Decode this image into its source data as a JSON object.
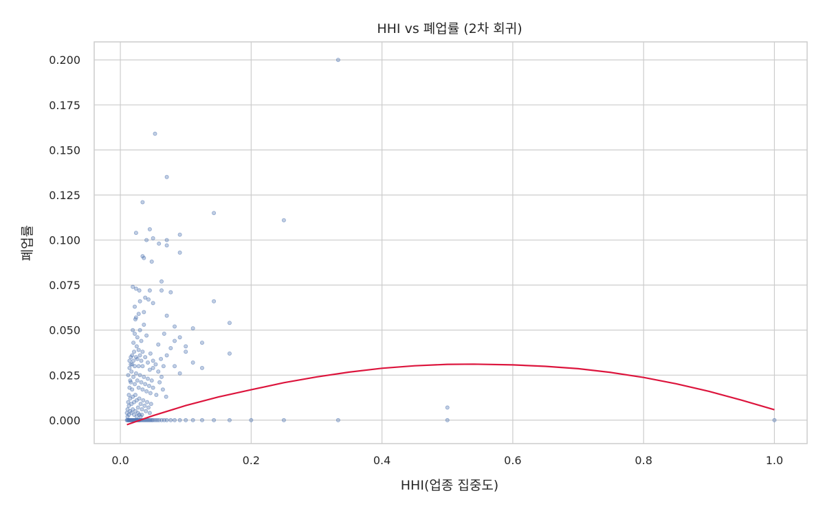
{
  "chart_data": {
    "type": "scatter",
    "title": "HHI vs 폐업률 (2차 회귀)",
    "xlabel": "HHI(업종 집중도)",
    "ylabel": "폐업률",
    "xlim": [
      -0.04,
      1.05
    ],
    "ylim": [
      -0.013,
      0.21
    ],
    "x_ticks": [
      0.0,
      0.2,
      0.4,
      0.6,
      0.8,
      1.0
    ],
    "x_tick_labels": [
      "0.0",
      "0.2",
      "0.4",
      "0.6",
      "0.8",
      "1.0"
    ],
    "y_ticks": [
      0.0,
      0.025,
      0.05,
      0.075,
      0.1,
      0.125,
      0.15,
      0.175,
      0.2
    ],
    "y_tick_labels": [
      "0.000",
      "0.025",
      "0.050",
      "0.075",
      "0.100",
      "0.125",
      "0.150",
      "0.175",
      "0.200"
    ],
    "grid": true,
    "colors": {
      "points": "#4c72b0",
      "fit_line": "#dc143c",
      "grid": "#cccccc",
      "frame": "#cccccc",
      "text": "#262626"
    },
    "series": [
      {
        "type": "scatter",
        "points": [
          [
            0.333,
            0.2
          ],
          [
            0.053,
            0.159
          ],
          [
            0.071,
            0.135
          ],
          [
            0.034,
            0.121
          ],
          [
            0.143,
            0.115
          ],
          [
            0.25,
            0.111
          ],
          [
            0.045,
            0.106
          ],
          [
            0.024,
            0.104
          ],
          [
            0.091,
            0.103
          ],
          [
            0.05,
            0.101
          ],
          [
            0.04,
            0.1
          ],
          [
            0.071,
            0.1
          ],
          [
            0.059,
            0.098
          ],
          [
            0.071,
            0.097
          ],
          [
            0.091,
            0.093
          ],
          [
            0.034,
            0.091
          ],
          [
            0.036,
            0.09
          ],
          [
            0.048,
            0.088
          ],
          [
            0.063,
            0.077
          ],
          [
            0.019,
            0.074
          ],
          [
            0.024,
            0.073
          ],
          [
            0.029,
            0.072
          ],
          [
            0.045,
            0.072
          ],
          [
            0.063,
            0.072
          ],
          [
            0.077,
            0.071
          ],
          [
            0.038,
            0.068
          ],
          [
            0.043,
            0.067
          ],
          [
            0.143,
            0.066
          ],
          [
            0.03,
            0.066
          ],
          [
            0.05,
            0.065
          ],
          [
            0.022,
            0.063
          ],
          [
            0.036,
            0.06
          ],
          [
            0.028,
            0.059
          ],
          [
            0.071,
            0.058
          ],
          [
            0.024,
            0.057
          ],
          [
            0.167,
            0.054
          ],
          [
            0.083,
            0.052
          ],
          [
            0.111,
            0.051
          ],
          [
            0.067,
            0.048
          ],
          [
            0.091,
            0.046
          ],
          [
            0.083,
            0.044
          ],
          [
            0.125,
            0.043
          ],
          [
            0.058,
            0.042
          ],
          [
            0.1,
            0.041
          ],
          [
            0.077,
            0.04
          ],
          [
            0.1,
            0.038
          ],
          [
            0.167,
            0.037
          ],
          [
            0.071,
            0.036
          ],
          [
            0.111,
            0.032
          ],
          [
            0.083,
            0.03
          ],
          [
            0.125,
            0.029
          ],
          [
            0.091,
            0.026
          ],
          [
            0.063,
            0.024
          ],
          [
            0.05,
            0.033
          ],
          [
            0.045,
            0.028
          ],
          [
            0.04,
            0.047
          ],
          [
            0.036,
            0.053
          ],
          [
            0.034,
            0.038
          ],
          [
            0.032,
            0.044
          ],
          [
            0.03,
            0.05
          ],
          [
            0.028,
            0.03
          ],
          [
            0.026,
            0.046
          ],
          [
            0.025,
            0.041
          ],
          [
            0.024,
            0.035
          ],
          [
            0.023,
            0.056
          ],
          [
            0.022,
            0.048
          ],
          [
            0.021,
            0.038
          ],
          [
            0.02,
            0.043
          ],
          [
            0.019,
            0.05
          ],
          [
            0.018,
            0.031
          ],
          [
            0.017,
            0.027
          ],
          [
            0.016,
            0.035
          ],
          [
            0.015,
            0.022
          ],
          [
            0.014,
            0.018
          ],
          [
            0.013,
            0.014
          ],
          [
            0.012,
            0.01
          ],
          [
            0.011,
            0.006
          ],
          [
            0.01,
            0.004
          ],
          [
            0.012,
            0.025
          ],
          [
            0.014,
            0.029
          ],
          [
            0.016,
            0.021
          ],
          [
            0.018,
            0.017
          ],
          [
            0.02,
            0.024
          ],
          [
            0.022,
            0.02
          ],
          [
            0.024,
            0.026
          ],
          [
            0.026,
            0.022
          ],
          [
            0.028,
            0.018
          ],
          [
            0.03,
            0.025
          ],
          [
            0.032,
            0.021
          ],
          [
            0.034,
            0.017
          ],
          [
            0.036,
            0.024
          ],
          [
            0.038,
            0.02
          ],
          [
            0.04,
            0.016
          ],
          [
            0.042,
            0.023
          ],
          [
            0.044,
            0.019
          ],
          [
            0.046,
            0.015
          ],
          [
            0.048,
            0.022
          ],
          [
            0.05,
            0.018
          ],
          [
            0.055,
            0.014
          ],
          [
            0.06,
            0.021
          ],
          [
            0.065,
            0.017
          ],
          [
            0.07,
            0.013
          ],
          [
            0.013,
            0.008
          ],
          [
            0.015,
            0.012
          ],
          [
            0.017,
            0.009
          ],
          [
            0.019,
            0.013
          ],
          [
            0.021,
            0.01
          ],
          [
            0.023,
            0.014
          ],
          [
            0.025,
            0.011
          ],
          [
            0.027,
            0.007
          ],
          [
            0.029,
            0.012
          ],
          [
            0.031,
            0.009
          ],
          [
            0.033,
            0.006
          ],
          [
            0.035,
            0.011
          ],
          [
            0.037,
            0.008
          ],
          [
            0.039,
            0.005
          ],
          [
            0.041,
            0.01
          ],
          [
            0.043,
            0.007
          ],
          [
            0.045,
            0.004
          ],
          [
            0.047,
            0.009
          ],
          [
            0.011,
            0.002
          ],
          [
            0.013,
            0.003
          ],
          [
            0.015,
            0.005
          ],
          [
            0.017,
            0.004
          ],
          [
            0.019,
            0.006
          ],
          [
            0.021,
            0.003
          ],
          [
            0.023,
            0.005
          ],
          [
            0.025,
            0.002
          ],
          [
            0.027,
            0.004
          ],
          [
            0.029,
            0.003
          ],
          [
            0.031,
            0.002
          ],
          [
            0.033,
            0.003
          ],
          [
            0.014,
            0.033
          ],
          [
            0.016,
            0.031
          ],
          [
            0.018,
            0.036
          ],
          [
            0.02,
            0.033
          ],
          [
            0.022,
            0.03
          ],
          [
            0.026,
            0.034
          ],
          [
            0.028,
            0.039
          ],
          [
            0.03,
            0.036
          ],
          [
            0.032,
            0.033
          ],
          [
            0.034,
            0.03
          ],
          [
            0.038,
            0.035
          ],
          [
            0.042,
            0.032
          ],
          [
            0.046,
            0.037
          ],
          [
            0.05,
            0.029
          ],
          [
            0.054,
            0.031
          ],
          [
            0.058,
            0.027
          ],
          [
            0.062,
            0.034
          ],
          [
            0.066,
            0.03
          ],
          [
            0.01,
            0.0
          ],
          [
            0.011,
            0.0
          ],
          [
            0.012,
            0.0
          ],
          [
            0.013,
            0.0
          ],
          [
            0.014,
            0.0
          ],
          [
            0.015,
            0.0
          ],
          [
            0.016,
            0.0
          ],
          [
            0.017,
            0.0
          ],
          [
            0.018,
            0.0
          ],
          [
            0.019,
            0.0
          ],
          [
            0.02,
            0.0
          ],
          [
            0.021,
            0.0
          ],
          [
            0.022,
            0.0
          ],
          [
            0.023,
            0.0
          ],
          [
            0.024,
            0.0
          ],
          [
            0.025,
            0.0
          ],
          [
            0.026,
            0.0
          ],
          [
            0.027,
            0.0
          ],
          [
            0.028,
            0.0
          ],
          [
            0.029,
            0.0
          ],
          [
            0.03,
            0.0
          ],
          [
            0.032,
            0.0
          ],
          [
            0.034,
            0.0
          ],
          [
            0.036,
            0.0
          ],
          [
            0.038,
            0.0
          ],
          [
            0.04,
            0.0
          ],
          [
            0.042,
            0.0
          ],
          [
            0.044,
            0.0
          ],
          [
            0.046,
            0.0
          ],
          [
            0.048,
            0.0
          ],
          [
            0.05,
            0.0
          ],
          [
            0.053,
            0.0
          ],
          [
            0.056,
            0.0
          ],
          [
            0.059,
            0.0
          ],
          [
            0.063,
            0.0
          ],
          [
            0.067,
            0.0
          ],
          [
            0.071,
            0.0
          ],
          [
            0.077,
            0.0
          ],
          [
            0.083,
            0.0
          ],
          [
            0.091,
            0.0
          ],
          [
            0.1,
            0.0
          ],
          [
            0.111,
            0.0
          ],
          [
            0.125,
            0.0
          ],
          [
            0.143,
            0.0
          ],
          [
            0.167,
            0.0
          ],
          [
            0.2,
            0.0
          ],
          [
            0.25,
            0.0
          ],
          [
            0.333,
            0.0
          ],
          [
            0.5,
            0.0
          ],
          [
            1.0,
            0.0
          ],
          [
            0.5,
            0.007
          ]
        ]
      },
      {
        "type": "line",
        "fit": "quadratic",
        "x_range": [
          0.01,
          1.0
        ],
        "points": [
          [
            0.01,
            -0.0025
          ],
          [
            0.05,
            0.0025
          ],
          [
            0.1,
            0.0081
          ],
          [
            0.15,
            0.0129
          ],
          [
            0.2,
            0.0169
          ],
          [
            0.25,
            0.0208
          ],
          [
            0.3,
            0.024
          ],
          [
            0.35,
            0.0267
          ],
          [
            0.4,
            0.0288
          ],
          [
            0.45,
            0.0302
          ],
          [
            0.5,
            0.031
          ],
          [
            0.54,
            0.0311
          ],
          [
            0.6,
            0.0307
          ],
          [
            0.65,
            0.0299
          ],
          [
            0.7,
            0.0286
          ],
          [
            0.75,
            0.0265
          ],
          [
            0.8,
            0.0237
          ],
          [
            0.85,
            0.0202
          ],
          [
            0.9,
            0.016
          ],
          [
            0.95,
            0.0111
          ],
          [
            1.0,
            0.0058
          ]
        ]
      }
    ]
  }
}
